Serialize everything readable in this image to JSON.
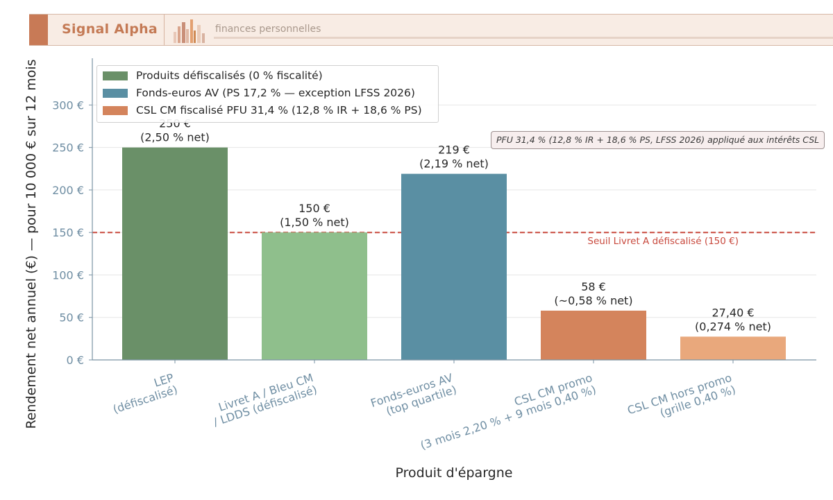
{
  "header": {
    "brand": "Signal Alpha",
    "tagline": "finances personnelles"
  },
  "chart_data": {
    "type": "bar",
    "xlabel": "Produit d'épargne",
    "ylabel": "Rendement net annuel (€) — pour 10 000 € sur 12 mois",
    "ylim": [
      0,
      355
    ],
    "yticks": [
      0,
      50,
      100,
      150,
      200,
      250,
      300
    ],
    "ytick_labels": [
      "0 €",
      "50 €",
      "100 €",
      "150 €",
      "200 €",
      "250 €",
      "300 €"
    ],
    "grid": true,
    "legend_position": "top-left",
    "legend": [
      {
        "label": "Produits défiscalisés (0 % fiscalité)",
        "color": "#6a9068"
      },
      {
        "label": "Fonds-euros AV (PS 17,2 % — exception LFSS 2026)",
        "color": "#5a8fa3"
      },
      {
        "label": "CSL CM fiscalisé PFU 31,4 % (12,8 % IR + 18,6 % PS)",
        "color": "#d4845c"
      }
    ],
    "categories": [
      [
        "LEP",
        "(défiscalisé)"
      ],
      [
        "Livret A / Bleu CM",
        "/ LDDS (défiscalisé)"
      ],
      [
        "Fonds-euros AV",
        "(top quartile)"
      ],
      [
        "CSL CM promo",
        "(3 mois 2,20 % + 9 mois 0,40 %)"
      ],
      [
        "CSL CM hors promo",
        "(grille 0,40 %)"
      ]
    ],
    "values": [
      250,
      150,
      219,
      58,
      27.4
    ],
    "bar_colors": [
      "#6a9068",
      "#8fbf8c",
      "#5a8fa3",
      "#d4845c",
      "#e9a87c"
    ],
    "data_labels": [
      [
        "250 €",
        "(2,50 % net)"
      ],
      [
        "150 €",
        "(1,50 % net)"
      ],
      [
        "219 €",
        "(2,19 % net)"
      ],
      [
        "58 €",
        "(~0,58 % net)"
      ],
      [
        "27,40 €",
        "(0,274 % net)"
      ]
    ],
    "reference_line": {
      "value": 150,
      "label": "Seuil Livret A défiscalisé (150 €)",
      "color": "#c8483c"
    },
    "annotation": "PFU 31,4 % (12,8 % IR + 18,6 % PS, LFSS 2026) appliqué aux intérêts CSL"
  }
}
